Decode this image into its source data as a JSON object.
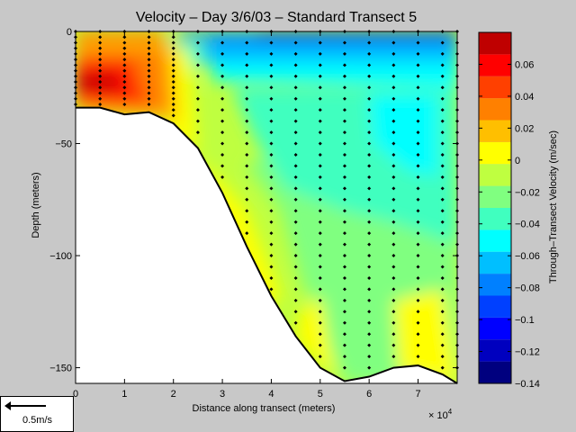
{
  "chart_data": {
    "type": "heatmap",
    "title": "Velocity – Day 3/6/03 – Standard Transect 5",
    "xlabel": "Distance along transect (meters)",
    "ylabel": "Depth (meters)",
    "x_multiplier_label": "× 10",
    "x_multiplier_exponent": "4",
    "x_ticks": [
      0,
      1,
      2,
      3,
      4,
      5,
      6,
      7
    ],
    "y_ticks": [
      0,
      -50,
      -100,
      -150
    ],
    "y_tick_labels": [
      "0",
      "−50",
      "−100",
      "−150"
    ],
    "xlim": [
      0,
      7.8
    ],
    "ylim": [
      -157,
      0
    ],
    "colorbar": {
      "label": "Through–Transect Velocity (m/sec)",
      "range": [
        -0.14,
        0.08
      ],
      "ticks": [
        0.06,
        0.04,
        0.02,
        0,
        -0.02,
        -0.04,
        -0.06,
        -0.08,
        -0.1,
        -0.12,
        -0.14
      ],
      "tick_labels": [
        "0.06",
        "0.04",
        "0.02",
        "0",
        "−0.02",
        "−0.04",
        "−0.06",
        "−0.08",
        "−0.1",
        "−0.12",
        "−0.14"
      ],
      "colors": [
        "#00007f",
        "#0000bf",
        "#0000ff",
        "#0040ff",
        "#0080ff",
        "#00bfff",
        "#00ffff",
        "#40ffbf",
        "#80ff80",
        "#bfff40",
        "#ffff00",
        "#ffbf00",
        "#ff8000",
        "#ff4000",
        "#ff0000",
        "#bf0000"
      ]
    },
    "bottom_profile": {
      "x": [
        0,
        0.5,
        1,
        1.5,
        2,
        2.5,
        3,
        3.5,
        4,
        4.5,
        5,
        5.5,
        6,
        6.5,
        7,
        7.5,
        7.8
      ],
      "depth": [
        -34,
        -34,
        -37,
        -36,
        -41,
        -52,
        -72,
        -96,
        -118,
        -136,
        -150,
        -156,
        -154,
        -150,
        -149,
        -153,
        -157
      ]
    },
    "sample_stations_x": [
      0,
      0.5,
      1,
      1.5,
      2,
      2.5,
      3,
      3.5,
      4,
      4.5,
      5,
      5.5,
      6,
      6.5,
      7,
      7.5,
      7.8
    ],
    "sample_depth_step": 5,
    "dense_surface_dots_to_depth": 40
  },
  "scale": {
    "label": "0.5m/s"
  }
}
